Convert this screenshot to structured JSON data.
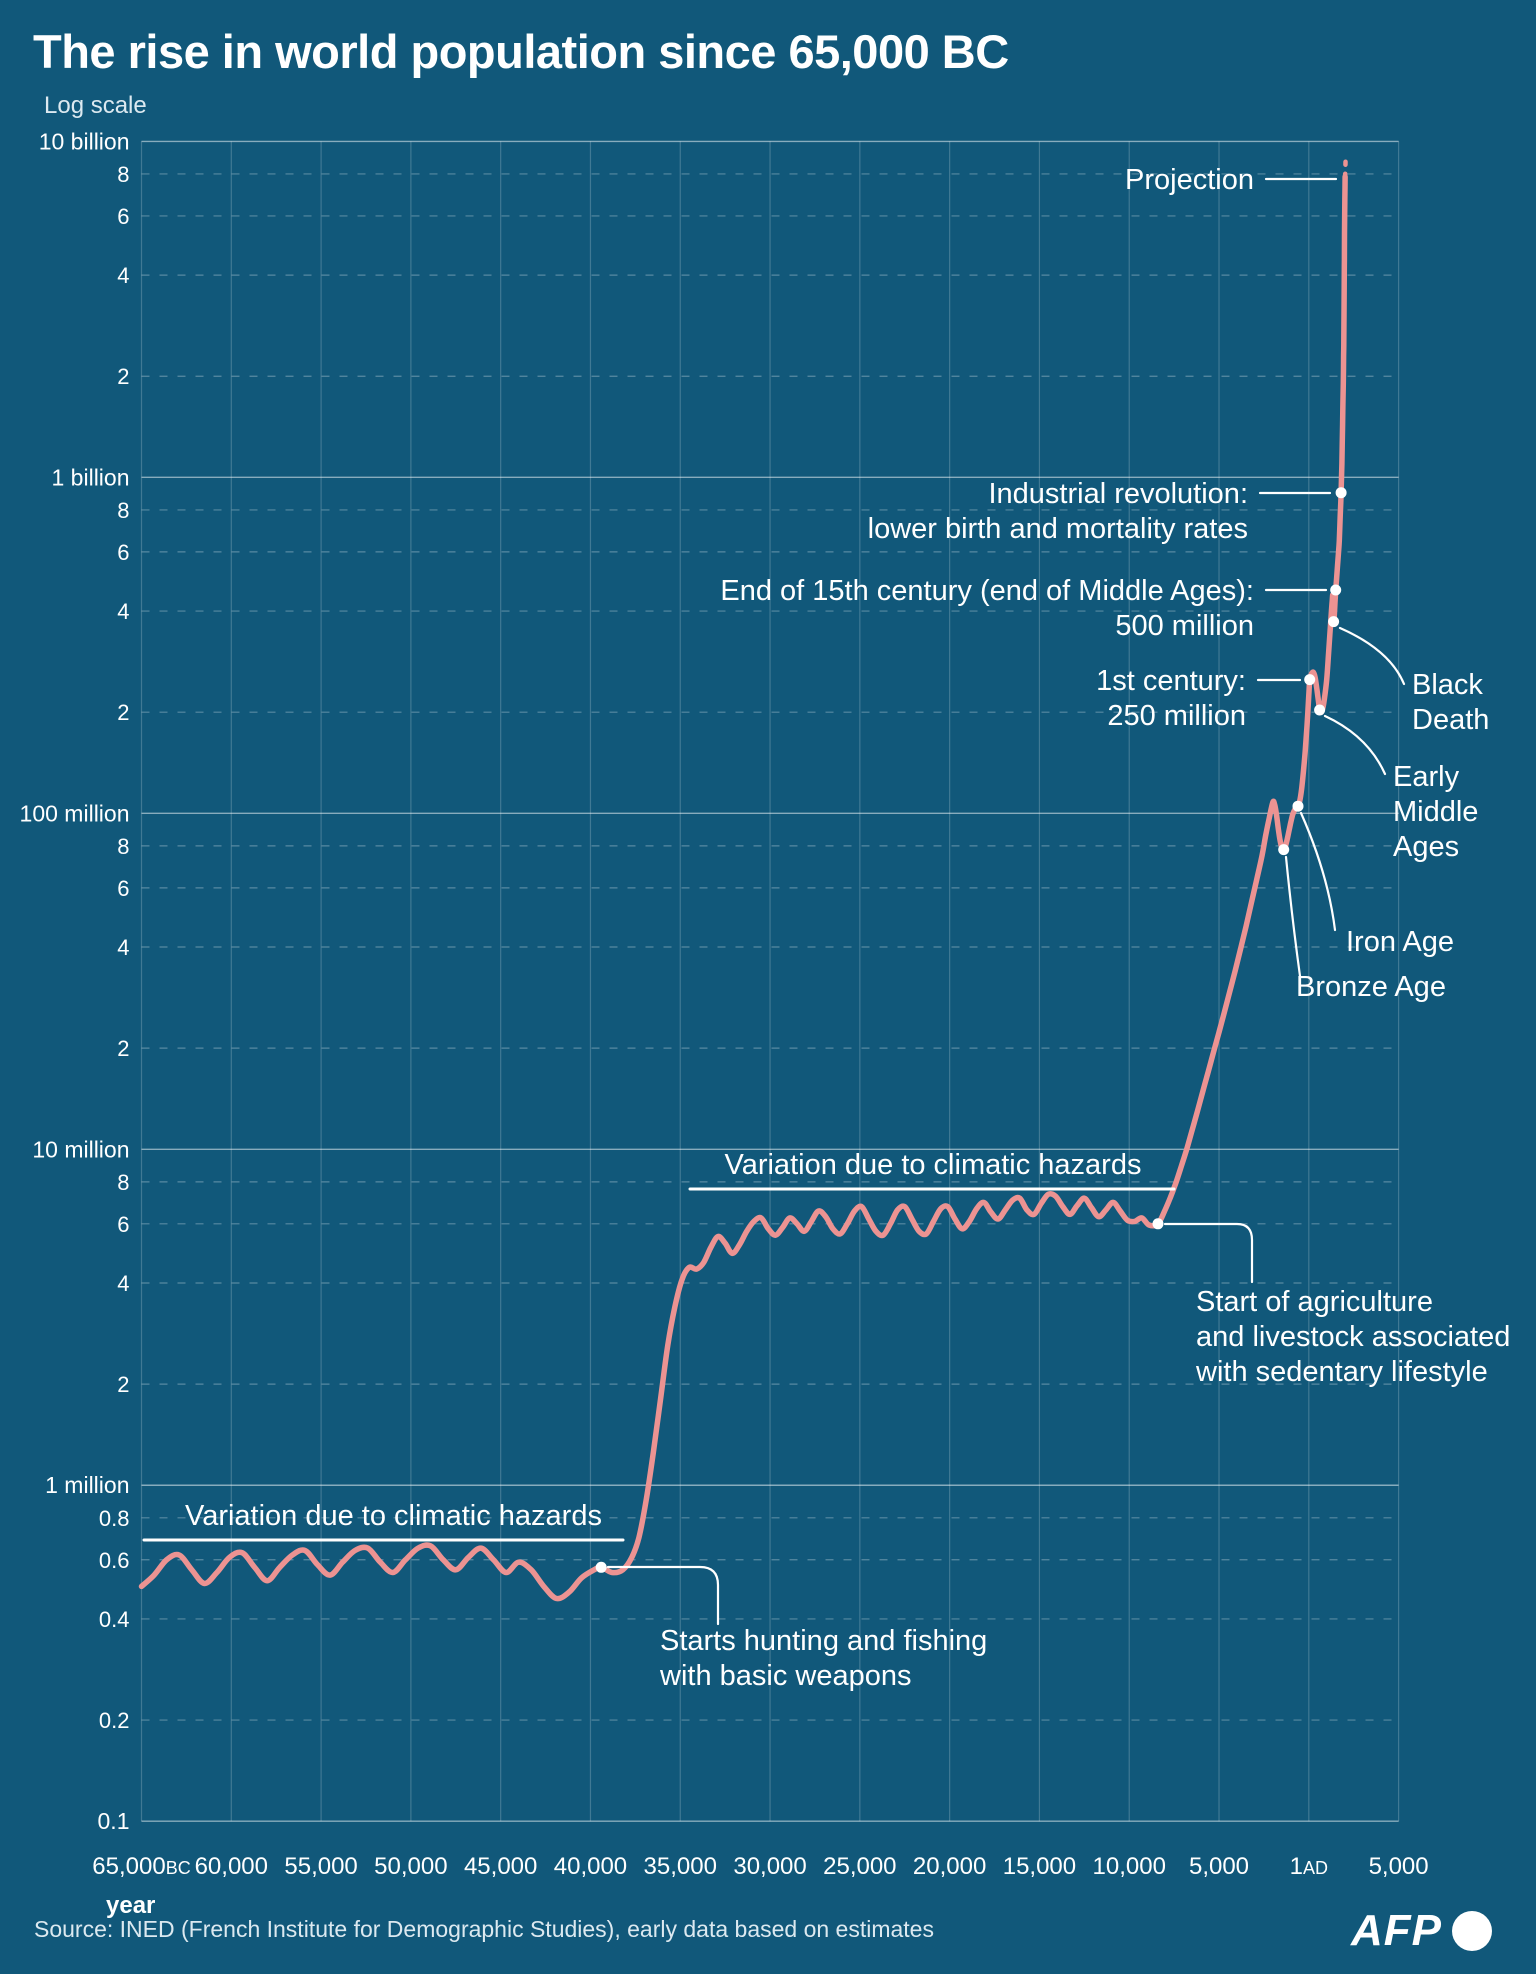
{
  "colors": {
    "bg": "#11587A",
    "line": "#EC9392",
    "ink": "#FFFFFF",
    "inkSoft": "#DCE9F0",
    "gridMajor": "rgba(255,255,255,0.5)",
    "gridMinor": "rgba(255,255,255,0.3)",
    "gridVert": "rgba(255,255,255,0.2)"
  },
  "chart_data": {
    "type": "line",
    "title": "The rise in world population since 65,000 BC",
    "y_axis": {
      "label": "Log scale",
      "scale": "log",
      "unit": "millions",
      "range_millions": [
        0.1,
        10000
      ],
      "ticks": [
        {
          "value": 10000,
          "label": "10 billion",
          "major": true
        },
        {
          "value": 8000,
          "label": "8",
          "major": false
        },
        {
          "value": 6000,
          "label": "6",
          "major": false
        },
        {
          "value": 4000,
          "label": "4",
          "major": false
        },
        {
          "value": 2000,
          "label": "2",
          "major": false
        },
        {
          "value": 1000,
          "label": "1 billion",
          "major": true
        },
        {
          "value": 800,
          "label": "8",
          "major": false
        },
        {
          "value": 600,
          "label": "6",
          "major": false
        },
        {
          "value": 400,
          "label": "4",
          "major": false
        },
        {
          "value": 200,
          "label": "2",
          "major": false
        },
        {
          "value": 100,
          "label": "100 million",
          "major": true
        },
        {
          "value": 80,
          "label": "8",
          "major": false
        },
        {
          "value": 60,
          "label": "6",
          "major": false
        },
        {
          "value": 40,
          "label": "4",
          "major": false
        },
        {
          "value": 20,
          "label": "2",
          "major": false
        },
        {
          "value": 10,
          "label": "10 million",
          "major": true
        },
        {
          "value": 8,
          "label": "8",
          "major": false
        },
        {
          "value": 6,
          "label": "6",
          "major": false
        },
        {
          "value": 4,
          "label": "4",
          "major": false
        },
        {
          "value": 2,
          "label": "2",
          "major": false
        },
        {
          "value": 1,
          "label": "1 million",
          "major": true
        },
        {
          "value": 0.8,
          "label": "0.8",
          "major": false
        },
        {
          "value": 0.6,
          "label": "0.6",
          "major": false
        },
        {
          "value": 0.4,
          "label": "0.4",
          "major": false
        },
        {
          "value": 0.2,
          "label": "0.2",
          "major": false
        },
        {
          "value": 0.1,
          "label": "0.1",
          "major": true
        }
      ]
    },
    "x_axis": {
      "label": "year",
      "range_years": [
        -65000,
        5000
      ],
      "ticks": [
        {
          "year": -65000,
          "label": "65,000",
          "suffix": "BC"
        },
        {
          "year": -60000,
          "label": "60,000"
        },
        {
          "year": -55000,
          "label": "55,000"
        },
        {
          "year": -50000,
          "label": "50,000"
        },
        {
          "year": -45000,
          "label": "45,000"
        },
        {
          "year": -40000,
          "label": "40,000"
        },
        {
          "year": -35000,
          "label": "35,000"
        },
        {
          "year": -30000,
          "label": "30,000"
        },
        {
          "year": -25000,
          "label": "25,000"
        },
        {
          "year": -20000,
          "label": "20,000"
        },
        {
          "year": -15000,
          "label": "15,000"
        },
        {
          "year": -10000,
          "label": "10,000"
        },
        {
          "year": -5000,
          "label": "5,000"
        },
        {
          "year": 0,
          "label": "1",
          "suffix": "AD"
        },
        {
          "year": 5000,
          "label": "5,000"
        }
      ]
    },
    "series": [
      [
        -65000,
        0.5
      ],
      [
        -64300,
        0.54
      ],
      [
        -63600,
        0.6
      ],
      [
        -62900,
        0.62
      ],
      [
        -62200,
        0.56
      ],
      [
        -61500,
        0.51
      ],
      [
        -60800,
        0.55
      ],
      [
        -60100,
        0.61
      ],
      [
        -59400,
        0.63
      ],
      [
        -58700,
        0.57
      ],
      [
        -58000,
        0.52
      ],
      [
        -57300,
        0.57
      ],
      [
        -56600,
        0.62
      ],
      [
        -55900,
        0.64
      ],
      [
        -55200,
        0.58
      ],
      [
        -54500,
        0.54
      ],
      [
        -53800,
        0.59
      ],
      [
        -53100,
        0.64
      ],
      [
        -52400,
        0.65
      ],
      [
        -51700,
        0.59
      ],
      [
        -51000,
        0.55
      ],
      [
        -50300,
        0.6
      ],
      [
        -49600,
        0.65
      ],
      [
        -48900,
        0.66
      ],
      [
        -48200,
        0.6
      ],
      [
        -47500,
        0.56
      ],
      [
        -46800,
        0.61
      ],
      [
        -46100,
        0.65
      ],
      [
        -45400,
        0.6
      ],
      [
        -44700,
        0.55
      ],
      [
        -44000,
        0.59
      ],
      [
        -43300,
        0.56
      ],
      [
        -42600,
        0.5
      ],
      [
        -41900,
        0.46
      ],
      [
        -41200,
        0.48
      ],
      [
        -40500,
        0.53
      ],
      [
        -39800,
        0.56
      ],
      [
        -39400,
        0.57
      ],
      [
        -38800,
        0.55
      ],
      [
        -38200,
        0.56
      ],
      [
        -37700,
        0.61
      ],
      [
        -37300,
        0.7
      ],
      [
        -36900,
        0.9
      ],
      [
        -36500,
        1.25
      ],
      [
        -36100,
        1.8
      ],
      [
        -35700,
        2.6
      ],
      [
        -35300,
        3.4
      ],
      [
        -34900,
        4.1
      ],
      [
        -34500,
        4.45
      ],
      [
        -34100,
        4.4
      ],
      [
        -33700,
        4.6
      ],
      [
        -33300,
        5.1
      ],
      [
        -32900,
        5.5
      ],
      [
        -32500,
        5.25
      ],
      [
        -32100,
        4.9
      ],
      [
        -31700,
        5.2
      ],
      [
        -31300,
        5.7
      ],
      [
        -30900,
        6.1
      ],
      [
        -30500,
        6.25
      ],
      [
        -30100,
        5.8
      ],
      [
        -29700,
        5.55
      ],
      [
        -29300,
        5.85
      ],
      [
        -28900,
        6.25
      ],
      [
        -28500,
        6.0
      ],
      [
        -28100,
        5.7
      ],
      [
        -27700,
        6.1
      ],
      [
        -27300,
        6.55
      ],
      [
        -26900,
        6.3
      ],
      [
        -26500,
        5.8
      ],
      [
        -26100,
        5.6
      ],
      [
        -25700,
        6.0
      ],
      [
        -25300,
        6.55
      ],
      [
        -24900,
        6.75
      ],
      [
        -24500,
        6.2
      ],
      [
        -24100,
        5.7
      ],
      [
        -23700,
        5.55
      ],
      [
        -23300,
        6.0
      ],
      [
        -22900,
        6.6
      ],
      [
        -22500,
        6.75
      ],
      [
        -22100,
        6.2
      ],
      [
        -21700,
        5.7
      ],
      [
        -21300,
        5.6
      ],
      [
        -20900,
        6.1
      ],
      [
        -20500,
        6.65
      ],
      [
        -20100,
        6.75
      ],
      [
        -19700,
        6.2
      ],
      [
        -19300,
        5.8
      ],
      [
        -18900,
        6.1
      ],
      [
        -18500,
        6.65
      ],
      [
        -18100,
        6.95
      ],
      [
        -17700,
        6.5
      ],
      [
        -17300,
        6.2
      ],
      [
        -16900,
        6.6
      ],
      [
        -16500,
        7.05
      ],
      [
        -16100,
        7.15
      ],
      [
        -15700,
        6.6
      ],
      [
        -15300,
        6.4
      ],
      [
        -14900,
        6.9
      ],
      [
        -14500,
        7.35
      ],
      [
        -14100,
        7.25
      ],
      [
        -13700,
        6.75
      ],
      [
        -13300,
        6.4
      ],
      [
        -12900,
        6.8
      ],
      [
        -12500,
        7.15
      ],
      [
        -12100,
        6.7
      ],
      [
        -11700,
        6.3
      ],
      [
        -11300,
        6.6
      ],
      [
        -10900,
        6.95
      ],
      [
        -10500,
        6.55
      ],
      [
        -10100,
        6.15
      ],
      [
        -9700,
        6.1
      ],
      [
        -9300,
        6.25
      ],
      [
        -8900,
        5.95
      ],
      [
        -8400,
        6.0
      ],
      [
        -8000,
        6.6
      ],
      [
        -7700,
        7.2
      ],
      [
        -7400,
        7.95
      ],
      [
        -7100,
        8.9
      ],
      [
        -6800,
        10.0
      ],
      [
        -6500,
        11.4
      ],
      [
        -6200,
        13.0
      ],
      [
        -5900,
        14.9
      ],
      [
        -5600,
        17.0
      ],
      [
        -5300,
        19.5
      ],
      [
        -5000,
        22.3
      ],
      [
        -4700,
        25.6
      ],
      [
        -4400,
        29.5
      ],
      [
        -4100,
        34.0
      ],
      [
        -3800,
        39.5
      ],
      [
        -3500,
        46.0
      ],
      [
        -3200,
        54.0
      ],
      [
        -2900,
        63.5
      ],
      [
        -2600,
        75.0
      ],
      [
        -2400,
        86.0
      ],
      [
        -2200,
        97.0
      ],
      [
        -2000,
        108.0
      ],
      [
        -1900,
        106
      ],
      [
        -1800,
        99
      ],
      [
        -1700,
        90
      ],
      [
        -1600,
        83
      ],
      [
        -1500,
        79
      ],
      [
        -1400,
        78
      ],
      [
        -1300,
        80
      ],
      [
        -1200,
        84
      ],
      [
        -1100,
        89
      ],
      [
        -1000,
        94
      ],
      [
        -900,
        99
      ],
      [
        -800,
        102
      ],
      [
        -700,
        104
      ],
      [
        -600,
        105
      ],
      [
        -500,
        109
      ],
      [
        -400,
        118
      ],
      [
        -300,
        133
      ],
      [
        -200,
        153
      ],
      [
        -100,
        182
      ],
      [
        0,
        225
      ],
      [
        50,
        250
      ],
      [
        150,
        260
      ],
      [
        250,
        263
      ],
      [
        350,
        254
      ],
      [
        450,
        234
      ],
      [
        550,
        213
      ],
      [
        600,
        203
      ],
      [
        700,
        200
      ],
      [
        800,
        208
      ],
      [
        900,
        226
      ],
      [
        1000,
        252
      ],
      [
        1100,
        300
      ],
      [
        1200,
        360
      ],
      [
        1300,
        428
      ],
      [
        1340,
        443
      ],
      [
        1380,
        372
      ],
      [
        1420,
        388
      ],
      [
        1460,
        425
      ],
      [
        1500,
        462
      ],
      [
        1550,
        500
      ],
      [
        1600,
        545
      ],
      [
        1650,
        592
      ],
      [
        1700,
        648
      ],
      [
        1750,
        765
      ],
      [
        1800,
        900
      ],
      [
        1840,
        1100
      ],
      [
        1880,
        1440
      ],
      [
        1900,
        1650
      ],
      [
        1920,
        1900
      ],
      [
        1940,
        2300
      ],
      [
        1950,
        2530
      ],
      [
        1960,
        3020
      ],
      [
        1970,
        3700
      ],
      [
        1980,
        4450
      ],
      [
        1990,
        5320
      ],
      [
        2000,
        6140
      ],
      [
        2010,
        6960
      ],
      [
        2020,
        7850
      ]
    ],
    "projection": [
      [
        2035,
        8400
      ],
      [
        2050,
        8900
      ],
      [
        2070,
        9250
      ]
    ],
    "events": [
      {
        "name": "hunting",
        "year": -39400,
        "value": 0.57
      },
      {
        "name": "agriculture",
        "year": -8400,
        "value": 6.0
      },
      {
        "name": "bronze-age",
        "year": -1400,
        "value": 78
      },
      {
        "name": "iron-age",
        "year": -600,
        "value": 105
      },
      {
        "name": "first-century",
        "year": 50,
        "value": 250
      },
      {
        "name": "early-middle-ages",
        "year": 600,
        "value": 203
      },
      {
        "name": "black-death",
        "year": 1380,
        "value": 372
      },
      {
        "name": "end-15th-century",
        "year": 1500,
        "value": 462
      },
      {
        "name": "industrial-revolution",
        "year": 1800,
        "value": 900
      }
    ]
  },
  "annotations": {
    "projection": "Projection",
    "industrial_1": "Industrial revolution:",
    "industrial_2": "lower birth and mortality rates",
    "end15_1": "End of 15th century (end of Middle Ages):",
    "end15_2": "500 million",
    "first_century_1": "1st century:",
    "first_century_2": "250 million",
    "black_death_1": "Black",
    "black_death_2": "Death",
    "early_middle_1": "Early",
    "early_middle_2": "Middle",
    "early_middle_3": "Ages",
    "iron_age": "Iron Age",
    "bronze_age": "Bronze Age",
    "variation_mid": "Variation due to climatic hazards",
    "variation_left": "Variation due to climatic hazards",
    "agriculture_1": "Start of agriculture",
    "agriculture_2": "and livestock associated",
    "agriculture_3": "with sedentary lifestyle",
    "hunting_1": "Starts hunting and fishing",
    "hunting_2": "with basic weapons"
  },
  "footer": {
    "source": "Source: INED (French Institute for Demographic Studies), early data based on estimates",
    "afp": "AFP"
  }
}
